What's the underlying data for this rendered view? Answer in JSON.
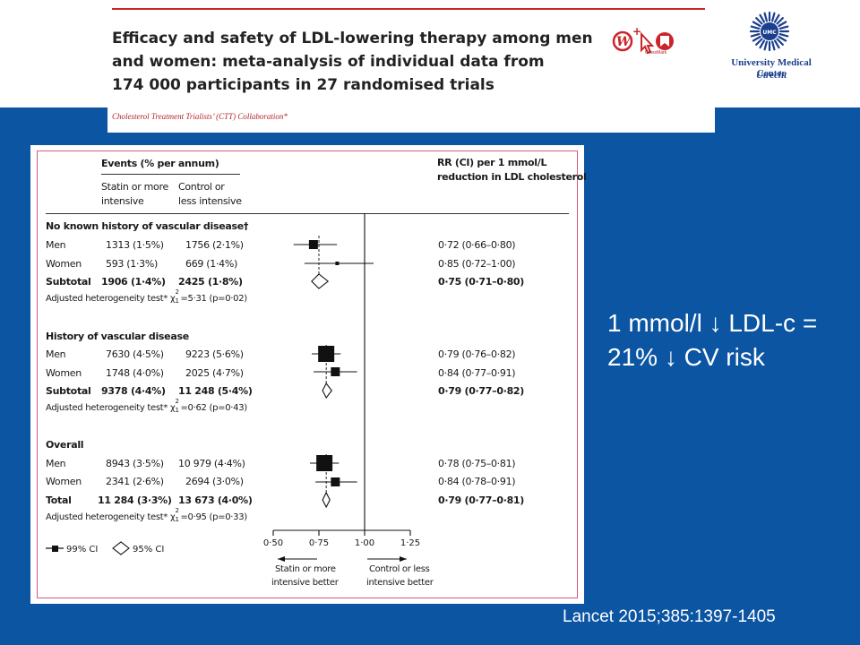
{
  "header": {
    "title_lines": [
      "Efficacy and safety of LDL-lowering therapy among men",
      "and women: meta-analysis of individual data from",
      "174 000 participants in 27 randomised trials"
    ],
    "authors": "Cholesterol Treatment Trialists’ (CTT) Collaboration*",
    "crossmark_label": "CrossMark",
    "logo_text": "UMC",
    "institution_name": "University Medical Center",
    "institution_city": "Utrecht"
  },
  "figure": {
    "events_header": "Events (% per annum)",
    "col_statin": [
      "Statin or more",
      "intensive"
    ],
    "col_control": [
      "Control or",
      "less intensive"
    ],
    "rr_header": [
      "RR (CI) per 1 mmol/L",
      "reduction in LDL cholesterol"
    ],
    "groups": [
      {
        "heading": "No known history of vascular disease†",
        "rows": [
          {
            "label": "Men",
            "statin": "1313 (1·5%)",
            "control": "1756 (2·1%)",
            "rr_text": "0·72 (0·66–0·80)",
            "rr": 0.72,
            "lo": 0.66,
            "hi": 0.8,
            "bold": false,
            "shape": "square"
          },
          {
            "label": "Women",
            "statin": "593 (1·3%)",
            "control": "669 (1·4%)",
            "rr_text": "0·85 (0·72–1·00)",
            "rr": 0.85,
            "lo": 0.72,
            "hi": 1.0,
            "bold": false,
            "shape": "square"
          },
          {
            "label": "Subtotal",
            "statin": "1906 (1·4%)",
            "control": "2425 (1·8%)",
            "rr_text": "0·75 (0·71–0·80)",
            "rr": 0.75,
            "lo": 0.71,
            "hi": 0.8,
            "bold": true,
            "shape": "diamond"
          }
        ],
        "heterogeneity": {
          "prefix": "Adjusted heterogeneity test* χ",
          "sup": "2",
          "sub": "1",
          "result": "=5·31 (p=0·02)"
        }
      },
      {
        "heading": "History of vascular disease",
        "rows": [
          {
            "label": "Men",
            "statin": "7630 (4·5%)",
            "control": "9223 (5·6%)",
            "rr_text": "0·79 (0·76–0·82)",
            "rr": 0.79,
            "lo": 0.76,
            "hi": 0.82,
            "bold": false,
            "shape": "square"
          },
          {
            "label": "Women",
            "statin": "1748 (4·0%)",
            "control": "2025 (4·7%)",
            "rr_text": "0·84 (0·77–0·91)",
            "rr": 0.84,
            "lo": 0.77,
            "hi": 0.91,
            "bold": false,
            "shape": "square"
          },
          {
            "label": "Subtotal",
            "statin": "9378 (4·4%)",
            "control": "11 248 (5·4%)",
            "rr_text": "0·79 (0·77–0·82)",
            "rr": 0.79,
            "lo": 0.77,
            "hi": 0.82,
            "bold": true,
            "shape": "diamond"
          }
        ],
        "heterogeneity": {
          "prefix": "Adjusted heterogeneity test* χ",
          "sup": "2",
          "sub": "1",
          "result": "=0·62 (p=0·43)"
        }
      },
      {
        "heading": "Overall",
        "rows": [
          {
            "label": "Men",
            "statin": "8943 (3·5%)",
            "control": "10 979 (4·4%)",
            "rr_text": "0·78 (0·75–0·81)",
            "rr": 0.78,
            "lo": 0.75,
            "hi": 0.81,
            "bold": false,
            "shape": "square"
          },
          {
            "label": "Women",
            "statin": "2341 (2·6%)",
            "control": "2694 (3·0%)",
            "rr_text": "0·84 (0·78–0·91)",
            "rr": 0.84,
            "lo": 0.78,
            "hi": 0.91,
            "bold": false,
            "shape": "square"
          },
          {
            "label": "Total",
            "statin": "11 284 (3·3%)",
            "control": "13 673 (4·0%)",
            "rr_text": "0·79 (0·77–0·81)",
            "rr": 0.79,
            "lo": 0.77,
            "hi": 0.81,
            "bold": true,
            "shape": "diamond"
          }
        ],
        "heterogeneity": {
          "prefix": "Adjusted heterogeneity test* χ",
          "sup": "2",
          "sub": "1",
          "result": "=0·95 (p=0·33)"
        }
      }
    ],
    "axis": {
      "min": 0.5,
      "max": 1.25,
      "ticks": [
        0.5,
        0.75,
        1.0,
        1.25
      ],
      "tick_labels": [
        "0·50",
        "0·75",
        "1·00",
        "1·25"
      ]
    },
    "legend": {
      "ci99": "99% CI",
      "ci95": "95% CI"
    },
    "favours_left": [
      "Statin or more",
      "intensive better"
    ],
    "favours_right": [
      "Control or less",
      "intensive better"
    ]
  },
  "key_message": {
    "line1": "1 mmol/l ↓ LDL-c =",
    "line2": "21% ↓ CV risk"
  },
  "citation": "Lancet 2015;385:1397-1405"
}
